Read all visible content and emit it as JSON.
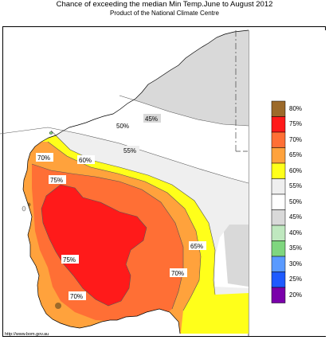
{
  "title": "Chance of exceeding the median Min Temp.June to August 2012",
  "subtitle": "Product of the National Climate Centre",
  "footer": "http://www.bom.gov.au",
  "map_labels": {
    "l45": "45%",
    "l50": "50%",
    "l55": "55%",
    "l60": "60%",
    "l70_west": "70%",
    "l75_north": "75%",
    "l75_center": "75%",
    "l65_east": "65%",
    "l70_east": "70%",
    "l70_south": "70%"
  },
  "legend": [
    {
      "label": "80%",
      "color": "#9c6a2a"
    },
    {
      "label": "75%",
      "color": "#ff1a1a"
    },
    {
      "label": "70%",
      "color": "#ff6f35"
    },
    {
      "label": "65%",
      "color": "#ffa23c"
    },
    {
      "label": "60%",
      "color": "#ffff1a"
    },
    {
      "label": "55%",
      "color": "#efefef"
    },
    {
      "label": "50%",
      "color": "#ffffff"
    },
    {
      "label": "45%",
      "color": "#d9d9d9"
    },
    {
      "label": "40%",
      "color": "#bfe8bf"
    },
    {
      "label": "35%",
      "color": "#7fd67f"
    },
    {
      "label": "30%",
      "color": "#5a9aff"
    },
    {
      "label": "25%",
      "color": "#1e5aff"
    },
    {
      "label": "20%",
      "color": "#7a00aa"
    }
  ]
}
